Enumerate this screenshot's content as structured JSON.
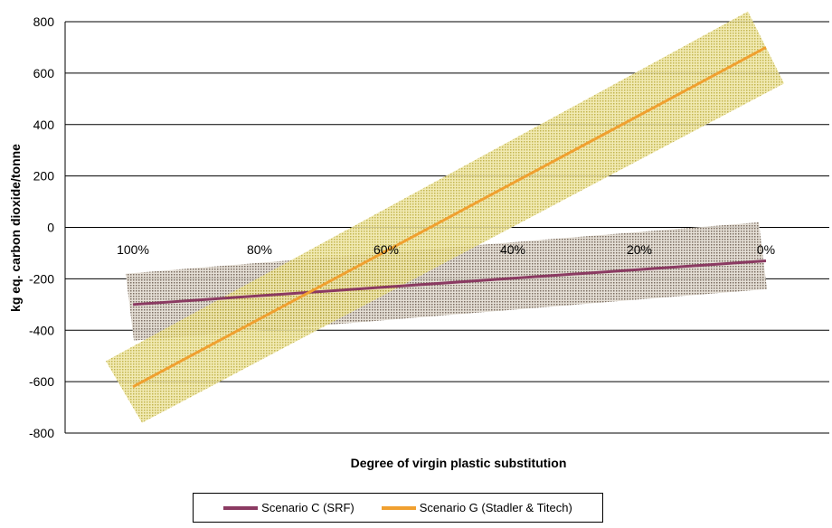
{
  "chart_data": {
    "type": "line",
    "xlabel": "Degree of virgin plastic substitution",
    "ylabel": "kg eq. carbon dioxide/tonne",
    "ylim": [
      -800,
      800
    ],
    "yticks": [
      800,
      600,
      400,
      200,
      0,
      -200,
      -400,
      -600,
      -800
    ],
    "categories": [
      "100%",
      "80%",
      "60%",
      "40%",
      "20%",
      "0%"
    ],
    "x": [
      100,
      0
    ],
    "grid": "horizontal",
    "legend_position": "bottom",
    "series": [
      {
        "name": "Scenario C (SRF)",
        "color": "#8b3a62",
        "values": [
          -300,
          -130
        ],
        "band": {
          "lower": [
            -430,
            -230
          ],
          "upper": [
            -180,
            20
          ]
        },
        "band_color": "#8c7c6c"
      },
      {
        "name": "Scenario G (Stadler & Titech)",
        "color": "#f0a030",
        "values": [
          -620,
          700
        ],
        "band": {
          "lower": [
            -760,
            560
          ],
          "upper": [
            -480,
            840
          ]
        },
        "band_color": "#d8c840"
      }
    ]
  }
}
